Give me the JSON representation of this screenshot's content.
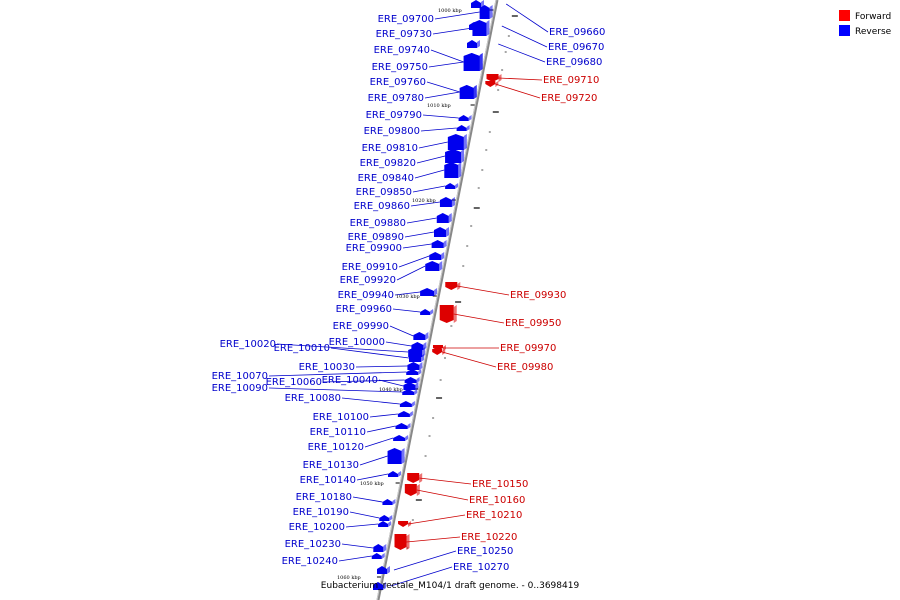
{
  "caption": "Eubacterium_rectale_M104/1 draft genome. - 0..3698419",
  "legend": [
    {
      "label": "Forward",
      "color": "#ff0000"
    },
    {
      "label": "Reverse",
      "color": "#0000ff"
    }
  ],
  "colors": {
    "forward": "#dd0000",
    "reverse": "#0000ee",
    "line_forward": "#cc0000",
    "line_reverse": "#0000cc",
    "axis": "#888888"
  },
  "ticks": [
    "1000 kbp",
    "1010 kbp",
    "1020 kbp",
    "1030 kbp",
    "1040 kbp",
    "1050 kbp",
    "1060 kbp"
  ],
  "reverse_genes": [
    "ERE_09700",
    "ERE_09730",
    "ERE_09740",
    "ERE_09750",
    "ERE_09760",
    "ERE_09780",
    "ERE_09790",
    "ERE_09800",
    "ERE_09810",
    "ERE_09820",
    "ERE_09840",
    "ERE_09850",
    "ERE_09860",
    "ERE_09880",
    "ERE_09890",
    "ERE_09900",
    "ERE_09910",
    "ERE_09920",
    "ERE_09940",
    "ERE_09960",
    "ERE_09990",
    "ERE_10000",
    "ERE_10020",
    "ERE_10010",
    "ERE_10030",
    "ERE_10070",
    "ERE_10060",
    "ERE_10040",
    "ERE_10090",
    "ERE_10080",
    "ERE_10100",
    "ERE_10110",
    "ERE_10120",
    "ERE_10130",
    "ERE_10140",
    "ERE_10180",
    "ERE_10190",
    "ERE_10200",
    "ERE_10230",
    "ERE_10240"
  ],
  "right_reverse_genes": [
    "ERE_09660",
    "ERE_09670",
    "ERE_09680",
    "ERE_10250",
    "ERE_10270"
  ],
  "forward_genes": [
    "ERE_09710",
    "ERE_09720",
    "ERE_09930",
    "ERE_09950",
    "ERE_09970",
    "ERE_09980",
    "ERE_10150",
    "ERE_10160",
    "ERE_10210",
    "ERE_10220"
  ]
}
